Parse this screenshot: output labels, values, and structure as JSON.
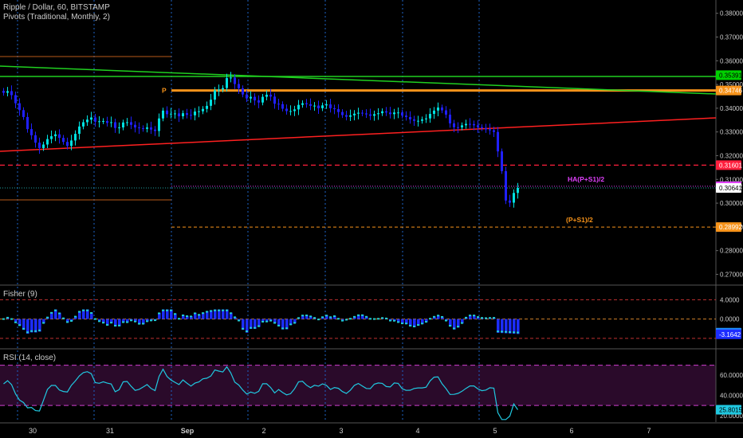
{
  "header": {
    "symbol": "Ripple / Dollar, 60, BITSTAMP",
    "indicator": "Pivots (Traditional, Monthly, 2)"
  },
  "chart_data": [
    {
      "type": "candlestick",
      "title": "Ripple / Dollar, 60, BITSTAMP",
      "yticks": [
        "0.38000",
        "0.37000",
        "0.36000",
        "0.35000",
        "0.34000",
        "0.33000",
        "0.32000",
        "0.31000",
        "0.30000",
        "0.29000",
        "0.28000",
        "0.27000"
      ],
      "ylim": [
        0.2658,
        0.3856
      ],
      "price_tags": [
        {
          "label": "0.35391",
          "value": 0.35391,
          "color": "#00d000"
        },
        {
          "label": "0.34746",
          "value": 0.34746,
          "color": "#f7931a"
        },
        {
          "label": "0.31601",
          "value": 0.31601,
          "color": "#ff1f3d"
        },
        {
          "label": "0.30712",
          "value": 0.30712,
          "color": "#e040fb"
        },
        {
          "label": "0.30641",
          "value": 0.30641,
          "color": "#ffffff"
        },
        {
          "label": "0.28992",
          "value": 0.28992,
          "color": "#f7931a"
        }
      ],
      "pivot_labels": [
        {
          "label": "P",
          "value": 0.34746,
          "color": "#f7931a"
        },
        {
          "label": "HA(P+S1)/2",
          "value": 0.30712,
          "color": "#e040fb"
        },
        {
          "label": "(P+S1)/2",
          "value": 0.28992,
          "color": "#f7931a"
        }
      ],
      "close_series": [
        0.3465,
        0.3472,
        0.3455,
        0.3421,
        0.3392,
        0.3363,
        0.3312,
        0.3286,
        0.3255,
        0.3232,
        0.3247,
        0.327,
        0.3282,
        0.329,
        0.3275,
        0.3258,
        0.3241,
        0.3264,
        0.3292,
        0.3323,
        0.3341,
        0.3352,
        0.3361,
        0.3343,
        0.3345,
        0.3346,
        0.3338,
        0.3341,
        0.3317,
        0.3319,
        0.334,
        0.3341,
        0.333,
        0.3319,
        0.3316,
        0.3313,
        0.3319,
        0.331,
        0.3304,
        0.3357,
        0.339,
        0.3375,
        0.3377,
        0.3378,
        0.3366,
        0.3379,
        0.3372,
        0.337,
        0.3386,
        0.3387,
        0.3397,
        0.341,
        0.3436,
        0.3475,
        0.3479,
        0.3485,
        0.3527,
        0.3529,
        0.3502,
        0.3484,
        0.3458,
        0.3441,
        0.3448,
        0.3433,
        0.3424,
        0.3448,
        0.3457,
        0.3449,
        0.3419,
        0.3417,
        0.3398,
        0.3388,
        0.3388,
        0.3395,
        0.3414,
        0.3421,
        0.3417,
        0.341,
        0.3411,
        0.34,
        0.3412,
        0.3416,
        0.34,
        0.3396,
        0.3384,
        0.3371,
        0.3364,
        0.337,
        0.3377,
        0.3381,
        0.3378,
        0.3374,
        0.3368,
        0.3375,
        0.3379,
        0.3387,
        0.3382,
        0.3375,
        0.3382,
        0.3382,
        0.3369,
        0.3363,
        0.3353,
        0.3347,
        0.3347,
        0.3353,
        0.3357,
        0.3376,
        0.339,
        0.3403,
        0.3391,
        0.3373,
        0.3336,
        0.332,
        0.3319,
        0.3328,
        0.3334,
        0.3333,
        0.3328,
        0.332,
        0.3316,
        0.3311,
        0.3307,
        0.33,
        0.3218,
        0.3135,
        0.3011,
        0.3002,
        0.3043,
        0.3064
      ]
    },
    {
      "type": "histogram",
      "title": "Fisher (9)",
      "yticks": [
        "4.0000",
        "0.0000"
      ],
      "ylim": [
        -6.0,
        6.7
      ],
      "value_tags": [
        {
          "label": "-2.8262",
          "value": -2.8262,
          "color": "#1e90ff"
        },
        {
          "label": "-3.1642",
          "value": -3.1642,
          "color": "#1c2dff"
        }
      ],
      "ref_lines": [
        4.0,
        -4.0
      ]
    },
    {
      "type": "line",
      "title": "RSI (14, close)",
      "yticks": [
        "60.0000",
        "40.0000",
        "20.0000"
      ],
      "ylim": [
        13.5,
        84.7
      ],
      "bands": [
        70,
        30
      ],
      "value_tags": [
        {
          "label": "25.8015",
          "value": 25.8015,
          "color": "#20c8e0"
        }
      ]
    }
  ],
  "time_axis": [
    "30",
    "31",
    "Sep",
    "2",
    "3",
    "4",
    "5",
    "6",
    "7"
  ],
  "colors": {
    "background": "#000000",
    "bull": "#00e0e0",
    "bear": "#2020ff",
    "rsi": "#20c8e0",
    "rsi_band": "#d040d0"
  }
}
